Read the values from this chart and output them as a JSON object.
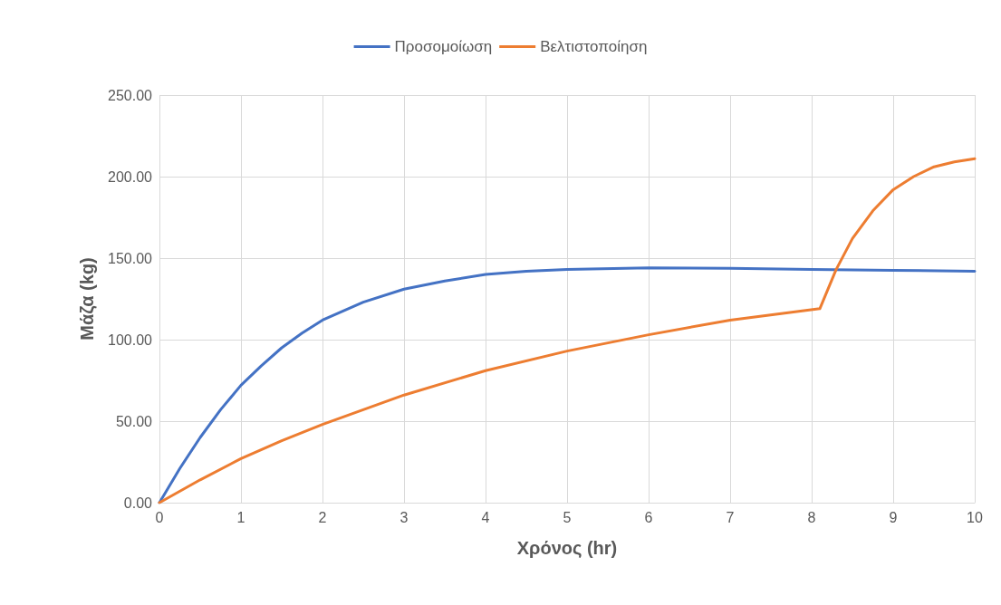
{
  "chart_data": {
    "type": "line",
    "xlabel": "Χρόνος (hr)",
    "ylabel": "Μάζα (kg)",
    "xlim": [
      0,
      10
    ],
    "xticks": [
      0,
      1,
      2,
      3,
      4,
      5,
      6,
      7,
      8,
      9,
      10
    ],
    "ylim": [
      0,
      250
    ],
    "yticks": [
      {
        "value": 0,
        "label": "0.00"
      },
      {
        "value": 50,
        "label": "50.00"
      },
      {
        "value": 100,
        "label": "100.00"
      },
      {
        "value": 150,
        "label": "150.00"
      },
      {
        "value": 200,
        "label": "200.00"
      },
      {
        "value": 250,
        "label": "250.00"
      }
    ],
    "grid": true,
    "legend": "top",
    "marker": "none",
    "line_style": "solid",
    "series": [
      {
        "name": "Προσομοίωση",
        "color": "#4472c4",
        "x": [
          0,
          0.25,
          0.5,
          0.75,
          1,
          1.25,
          1.5,
          1.75,
          2,
          2.5,
          3,
          3.5,
          4,
          4.5,
          5,
          6,
          7,
          8,
          9,
          10
        ],
        "values": [
          0,
          21,
          40,
          57,
          72,
          84,
          95,
          104,
          112,
          123,
          131,
          136,
          140,
          142,
          143,
          144,
          143.8,
          143,
          142.5,
          142
        ]
      },
      {
        "name": "Βελτιστοποίηση",
        "color": "#ed7d31",
        "x": [
          0,
          0.5,
          1,
          1.5,
          2,
          2.5,
          3,
          4,
          5,
          6,
          7,
          8.1,
          8.3,
          8.5,
          8.75,
          9,
          9.25,
          9.5,
          9.75,
          10
        ],
        "values": [
          0,
          14,
          27,
          38,
          48,
          57,
          66,
          81,
          93,
          103,
          112,
          119,
          143,
          162,
          179,
          192,
          200,
          206,
          209,
          211
        ]
      }
    ]
  }
}
